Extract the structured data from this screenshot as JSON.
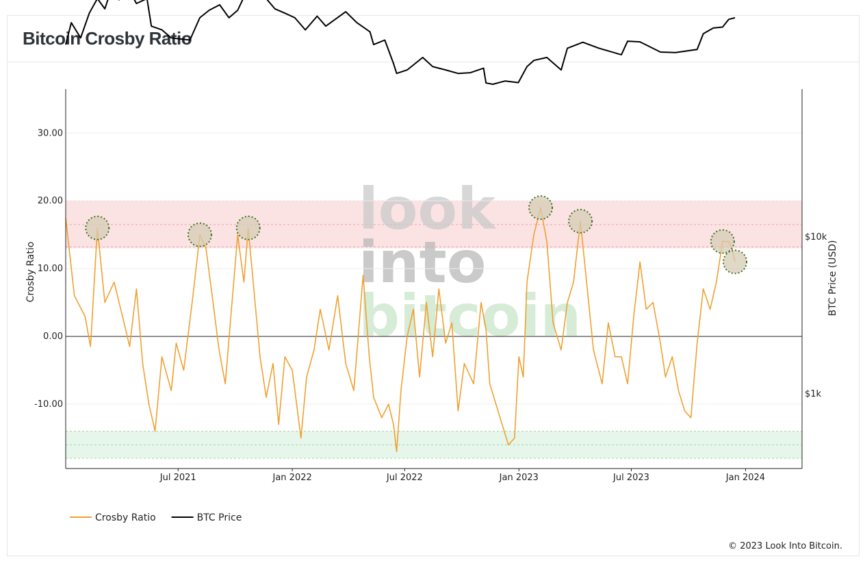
{
  "page": {
    "title": "Bitcoin Crosby Ratio",
    "copyright": "© 2023 Look Into Bitcoin."
  },
  "watermark": {
    "line1": "look",
    "line2": "into",
    "line3": "bitcoin"
  },
  "colors": {
    "crosby": "#f0a030",
    "btc": "#000000",
    "overheated_band": "#fbe3e4",
    "oversold_band": "#e6f6ea",
    "marker_fill": "#d6ccb4",
    "marker_stroke": "#3e6e1f"
  },
  "chart_data": {
    "type": "line",
    "title": "Bitcoin Crosby Ratio",
    "ylabel": "Crosby Ratio",
    "y2label": "BTC Price (USD)",
    "xlabel": "",
    "ylim": [
      -19.5,
      36.5
    ],
    "xlim": [
      "2021-01-01",
      "2024-04-01"
    ],
    "yticks": [
      "30.00",
      "20.00",
      "10.00",
      "0.00",
      "-10.00"
    ],
    "y2ticks": [
      "$10k",
      "$1k"
    ],
    "xticks": [
      "Jul 2021",
      "Jan 2022",
      "Jul 2022",
      "Jan 2023",
      "Jul 2023",
      "Jan 2024"
    ],
    "bands": [
      {
        "name": "overheated",
        "from": 13,
        "to": 20,
        "lines": [
          13.2,
          16.5,
          20
        ]
      },
      {
        "name": "oversold",
        "from": -18,
        "to": -14,
        "lines": [
          -14,
          -16,
          -18
        ]
      }
    ],
    "legend": {
      "position": "bottom-left",
      "entries": [
        "Crosby Ratio",
        "BTC Price"
      ]
    },
    "series": [
      {
        "name": "Crosby Ratio",
        "x": [
          "2021-01-01",
          "2021-01-15",
          "2021-02-01",
          "2021-02-10",
          "2021-02-21",
          "2021-03-05",
          "2021-03-20",
          "2021-04-05",
          "2021-04-14",
          "2021-04-25",
          "2021-05-05",
          "2021-05-15",
          "2021-05-25",
          "2021-06-05",
          "2021-06-20",
          "2021-06-28",
          "2021-07-10",
          "2021-07-25",
          "2021-08-05",
          "2021-08-15",
          "2021-08-25",
          "2021-09-05",
          "2021-09-15",
          "2021-09-25",
          "2021-10-05",
          "2021-10-15",
          "2021-10-22",
          "2021-11-01",
          "2021-11-10",
          "2021-11-20",
          "2021-12-01",
          "2021-12-10",
          "2021-12-20",
          "2022-01-01",
          "2022-01-15",
          "2022-01-24",
          "2022-02-05",
          "2022-02-15",
          "2022-03-01",
          "2022-03-15",
          "2022-03-28",
          "2022-04-10",
          "2022-04-25",
          "2022-05-05",
          "2022-05-12",
          "2022-05-25",
          "2022-06-05",
          "2022-06-13",
          "2022-06-18",
          "2022-06-25",
          "2022-07-05",
          "2022-07-15",
          "2022-07-25",
          "2022-08-05",
          "2022-08-15",
          "2022-08-25",
          "2022-09-05",
          "2022-09-15",
          "2022-09-25",
          "2022-10-05",
          "2022-10-20",
          "2022-11-01",
          "2022-11-09",
          "2022-11-15",
          "2022-11-25",
          "2022-12-05",
          "2022-12-15",
          "2022-12-25",
          "2023-01-01",
          "2023-01-08",
          "2023-01-14",
          "2023-01-25",
          "2023-02-05",
          "2023-02-15",
          "2023-02-25",
          "2023-03-10",
          "2023-03-20",
          "2023-03-30",
          "2023-04-10",
          "2023-04-20",
          "2023-05-01",
          "2023-05-15",
          "2023-05-25",
          "2023-06-05",
          "2023-06-15",
          "2023-06-25",
          "2023-07-05",
          "2023-07-15",
          "2023-07-25",
          "2023-08-05",
          "2023-08-17",
          "2023-08-25",
          "2023-09-05",
          "2023-09-15",
          "2023-09-25",
          "2023-10-05",
          "2023-10-15",
          "2023-10-25",
          "2023-11-05",
          "2023-11-15",
          "2023-11-25",
          "2023-12-05",
          "2023-12-10",
          "2023-12-15"
        ],
        "values": [
          17.5,
          6,
          3,
          -1.5,
          16,
          5,
          8,
          2,
          -1.5,
          7,
          -4,
          -10,
          -14,
          -3,
          -8,
          -1,
          -5,
          6,
          15,
          13,
          6,
          -2,
          -7,
          4,
          15,
          8,
          16,
          6,
          -3,
          -9,
          -4,
          -13,
          -3,
          -5,
          -15,
          -6,
          -2,
          4,
          -2,
          6,
          -4,
          -8,
          9,
          -3,
          -9,
          -12,
          -10,
          -13,
          -17,
          -8,
          0,
          4,
          -6,
          5,
          -3,
          7,
          -1,
          2,
          -11,
          -4,
          -7,
          5,
          1,
          -7,
          -10,
          -13,
          -16,
          -15,
          -3,
          -6,
          8,
          15,
          19,
          14,
          2,
          -2,
          5,
          8,
          17,
          8,
          -2,
          -7,
          2,
          -3,
          -3,
          -7,
          3,
          11,
          4,
          5,
          -1,
          -6,
          -3,
          -8,
          -11,
          -12,
          -1,
          7,
          4,
          8,
          14,
          14,
          13,
          11
        ],
        "color": "#f0a030"
      },
      {
        "name": "BTC Price",
        "x": [
          "2021-01-01",
          "2021-01-10",
          "2021-01-25",
          "2021-02-08",
          "2021-02-21",
          "2021-03-05",
          "2021-03-13",
          "2021-03-28",
          "2021-04-14",
          "2021-04-25",
          "2021-05-12",
          "2021-05-19",
          "2021-06-05",
          "2021-06-20",
          "2021-07-20",
          "2021-08-05",
          "2021-08-20",
          "2021-09-06",
          "2021-09-21",
          "2021-10-05",
          "2021-10-20",
          "2021-11-10",
          "2021-11-20",
          "2021-12-04",
          "2021-12-20",
          "2022-01-05",
          "2022-01-22",
          "2022-02-10",
          "2022-02-24",
          "2022-03-28",
          "2022-04-15",
          "2022-05-06",
          "2022-05-12",
          "2022-05-30",
          "2022-06-13",
          "2022-06-18",
          "2022-07-05",
          "2022-07-30",
          "2022-08-15",
          "2022-09-05",
          "2022-09-25",
          "2022-10-15",
          "2022-11-05",
          "2022-11-09",
          "2022-11-20",
          "2022-12-10",
          "2022-12-31",
          "2023-01-14",
          "2023-01-25",
          "2023-02-15",
          "2023-03-10",
          "2023-03-20",
          "2023-04-14",
          "2023-05-10",
          "2023-06-15",
          "2023-06-25",
          "2023-07-15",
          "2023-08-17",
          "2023-09-10",
          "2023-10-15",
          "2023-10-25",
          "2023-11-10",
          "2023-11-25",
          "2023-12-05",
          "2023-12-15"
        ],
        "values": [
          29000,
          40000,
          32000,
          46000,
          57000,
          49000,
          61000,
          56000,
          63500,
          53000,
          57000,
          38000,
          36000,
          32000,
          31000,
          43000,
          48000,
          52000,
          43000,
          48000,
          64000,
          68000,
          57000,
          49000,
          46000,
          43000,
          36000,
          44000,
          38000,
          47000,
          40000,
          35000,
          29000,
          31000,
          22000,
          19000,
          20000,
          24000,
          21000,
          20000,
          19000,
          19200,
          20500,
          16500,
          16200,
          17000,
          16600,
          21000,
          23000,
          24000,
          20000,
          27500,
          30000,
          27500,
          25000,
          30500,
          30200,
          26000,
          25800,
          27000,
          34000,
          37000,
          37500,
          42000,
          43000
        ],
        "color": "#000000"
      }
    ]
  }
}
